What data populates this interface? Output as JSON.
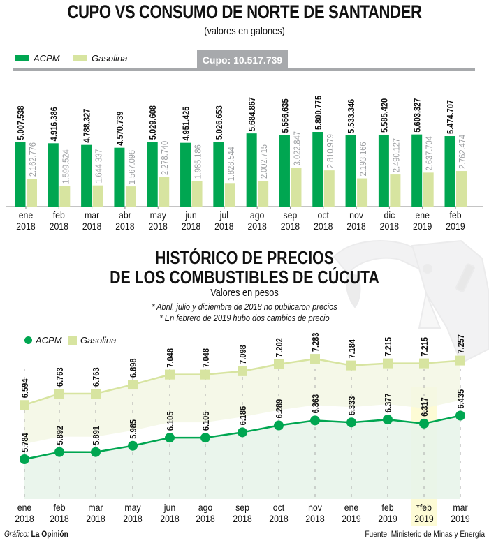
{
  "colors": {
    "acpm": "#00a651",
    "gasolina": "#d7e4a0",
    "cupo_bar": "#a7a9ac",
    "acpm_fill": "#e8f4ea",
    "gasolina_fill": "#f3f7e4",
    "highlight": "#fdfbd5",
    "gas_label": "#9d9fa2"
  },
  "chart_data": [
    {
      "type": "bar",
      "title": "CUPO VS CONSUMO DE NORTE DE SANTANDER",
      "subtitle": "(valores en galones)",
      "annotation": "Cupo: 10.517.739",
      "legend": [
        "ACPM",
        "Gasolina"
      ],
      "legend_position": "top-left",
      "categories": [
        [
          "ene",
          "2018"
        ],
        [
          "feb",
          "2018"
        ],
        [
          "mar",
          "2018"
        ],
        [
          "abr",
          "2018"
        ],
        [
          "may",
          "2018"
        ],
        [
          "jun",
          "2018"
        ],
        [
          "jul",
          "2018"
        ],
        [
          "ago",
          "2018"
        ],
        [
          "sep",
          "2018"
        ],
        [
          "oct",
          "2018"
        ],
        [
          "nov",
          "2018"
        ],
        [
          "dic",
          "2018"
        ],
        [
          "ene",
          "2019"
        ],
        [
          "feb",
          "2019"
        ]
      ],
      "series": [
        {
          "name": "ACPM",
          "values": [
            5007538,
            4916386,
            4788327,
            4570739,
            5029608,
            4951425,
            5026653,
            5684867,
            5556635,
            5800775,
            5533346,
            5585420,
            5603327,
            5474707
          ],
          "labels": [
            "5.007.538",
            "4.916.386",
            "4.788.327",
            "4.570.739",
            "5.029.608",
            "4.951.425",
            "5.026.653",
            "5.684.867",
            "5.556.635",
            "5.800.775",
            "5.533.346",
            "5.585.420",
            "5.603.327",
            "5.474.707"
          ]
        },
        {
          "name": "Gasolina",
          "values": [
            2162776,
            1599524,
            1644337,
            1567096,
            2278740,
            1985186,
            1828544,
            2002715,
            3022847,
            2810979,
            2193166,
            2490127,
            2637704,
            2762474
          ],
          "labels": [
            "2.162.776",
            "1.599.524",
            "1.644.337",
            "1.567.096",
            "2.278.740",
            "1.985.186",
            "1.828.544",
            "2.002.715",
            "3.022.847",
            "2.810.979",
            "2.193.166",
            "2.490.127",
            "2.637.704",
            "2.762.474"
          ]
        }
      ],
      "ylim": [
        0,
        10517739
      ],
      "grid": false
    },
    {
      "type": "line",
      "title": [
        "HISTÓRICO DE PRECIOS",
        "DE LOS COMBUSTIBLES DE CÚCUTA"
      ],
      "subtitle": "Valores en pesos",
      "notes": [
        "* Abril, julio y diciembre de 2018 no publicaron precios",
        "* En febrero de 2019 hubo dos cambios de precio"
      ],
      "legend": [
        "ACPM",
        "Gasolina"
      ],
      "legend_position": "top-left",
      "categories": [
        [
          "ene",
          "2018"
        ],
        [
          "feb",
          "2018"
        ],
        [
          "mar",
          "2018"
        ],
        [
          "may",
          "2018"
        ],
        [
          "jun",
          "2018"
        ],
        [
          "ago",
          "2018"
        ],
        [
          "sep",
          "2018"
        ],
        [
          "oct",
          "2018"
        ],
        [
          "nov",
          "2018"
        ],
        [
          "ene",
          "2019"
        ],
        [
          "feb",
          "2019"
        ],
        [
          "*feb",
          "2019"
        ],
        [
          "mar",
          "2019"
        ]
      ],
      "highlight_category_index": 11,
      "series": [
        {
          "name": "ACPM",
          "values": [
            5784,
            5892,
            5891,
            5985,
            6105,
            6105,
            6186,
            6289,
            6363,
            6333,
            6377,
            6317,
            6435
          ],
          "labels": [
            "5.784",
            "5.892",
            "5.891",
            "5.985",
            "6.105",
            "6.105",
            "6.186",
            "6.289",
            "6.363",
            "6.333",
            "6.377",
            "6.317",
            "6.435"
          ]
        },
        {
          "name": "Gasolina",
          "values": [
            6594,
            6763,
            6763,
            6898,
            7048,
            7048,
            7098,
            7202,
            7283,
            7184,
            7215,
            7215,
            7257
          ],
          "labels": [
            "6.594",
            "6.763",
            "6.763",
            "6.898",
            "7.048",
            "7.048",
            "7.098",
            "7.202",
            "7.283",
            "7.184",
            "7.215",
            "7.215",
            "7.257"
          ]
        }
      ],
      "grid": false
    }
  ],
  "footer": {
    "credit_label": "Gráfico:",
    "credit_value": "La Opinión",
    "source": "Fuente: Ministerio de Minas y Energía"
  }
}
